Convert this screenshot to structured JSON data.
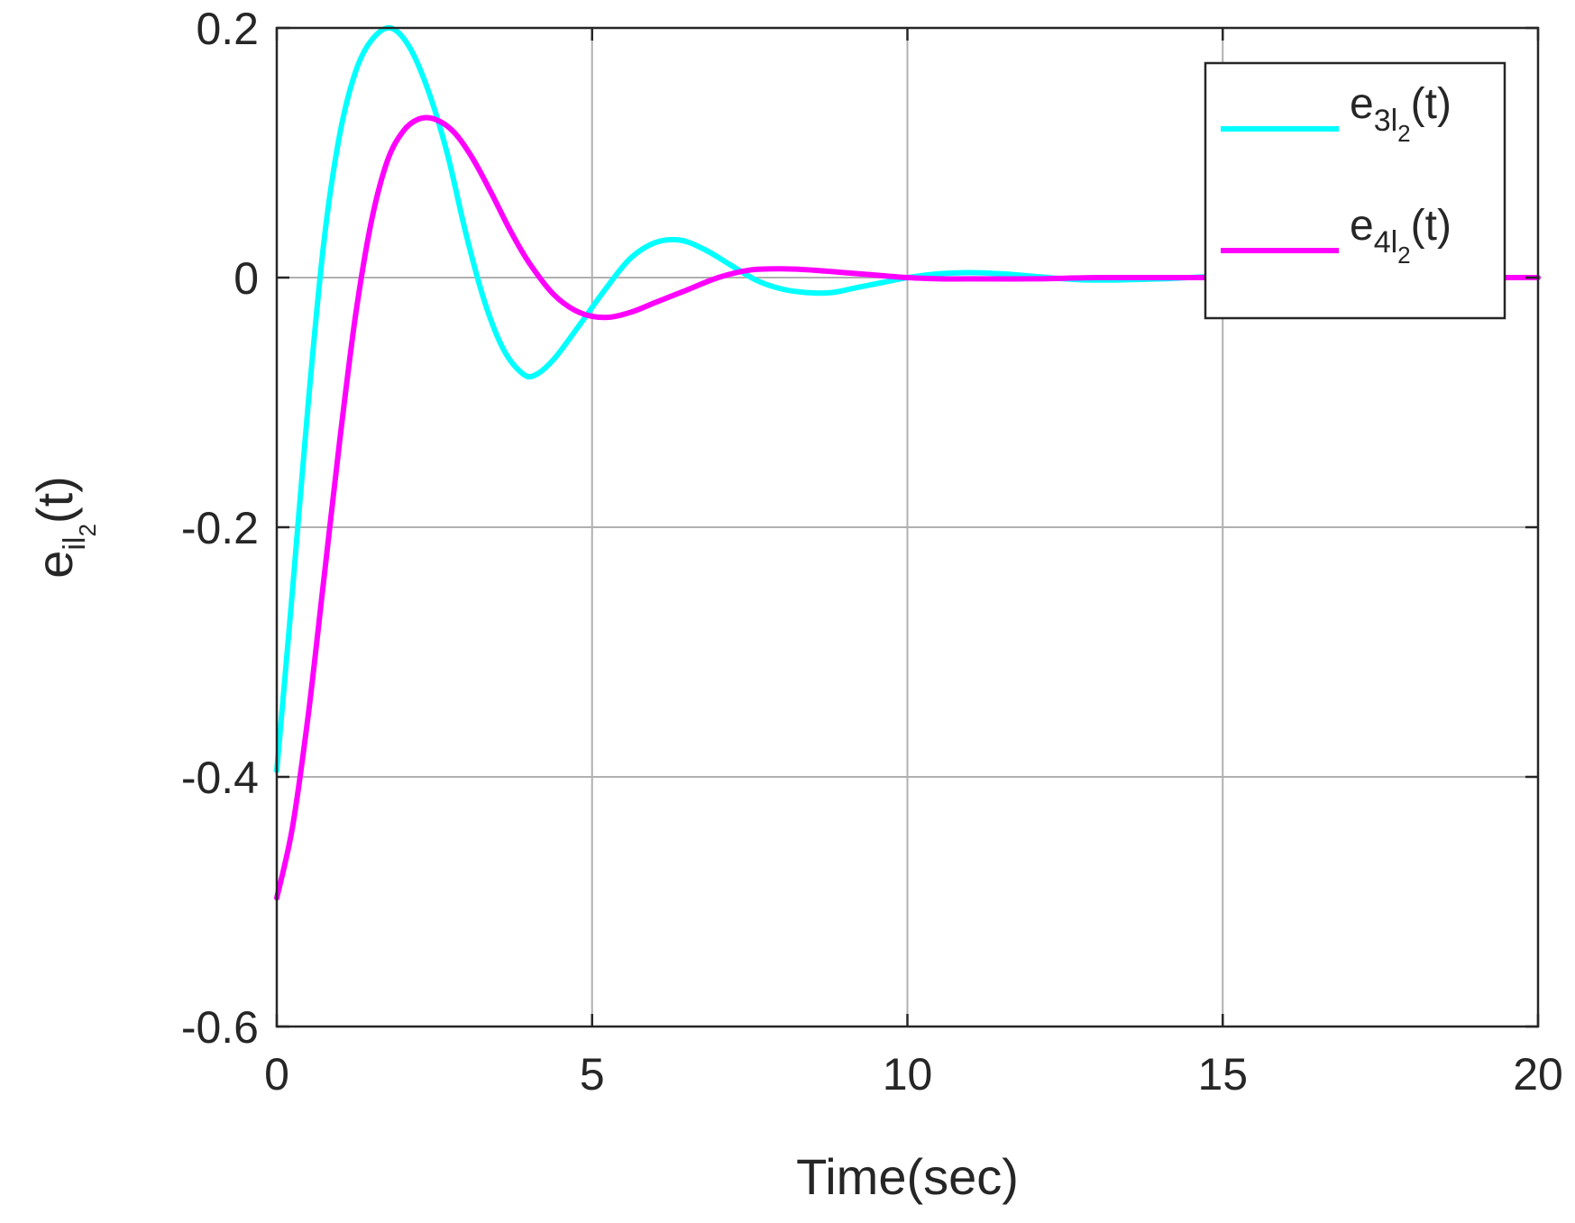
{
  "chart_data": {
    "type": "line",
    "xlabel": "Time(sec)",
    "ylabel": {
      "base": "e",
      "sub": "il",
      "subsub": "2",
      "suffix": "(t)"
    },
    "xlim": [
      0,
      20
    ],
    "ylim": [
      -0.6,
      0.2
    ],
    "xticks": [
      0,
      5,
      10,
      15,
      20
    ],
    "xtick_labels": [
      "0",
      "5",
      "10",
      "15",
      "20"
    ],
    "yticks": [
      -0.6,
      -0.4,
      -0.2,
      0,
      0.2
    ],
    "ytick_labels": [
      "-0.6",
      "-0.4",
      "-0.2",
      "0",
      "0.2"
    ],
    "grid": true,
    "legend_position": "top-right",
    "series": [
      {
        "name": "e3l2(t)",
        "legend": {
          "base": "e",
          "sub": "3l",
          "subsub": "2",
          "suffix": "(t)"
        },
        "color": "#00FFFF",
        "x": [
          0,
          0.25,
          0.5,
          0.75,
          1.0,
          1.25,
          1.5,
          1.8,
          2.1,
          2.4,
          2.7,
          3.0,
          3.3,
          3.6,
          3.9,
          4.1,
          4.4,
          4.8,
          5.2,
          5.6,
          6.0,
          6.4,
          6.8,
          7.2,
          7.6,
          8.0,
          8.4,
          8.8,
          9.2,
          9.6,
          10.0,
          10.5,
          11.0,
          11.5,
          12.0,
          12.5,
          13.0,
          14.0,
          15.0,
          16.0,
          17.0,
          18.0,
          19.0,
          20.0
        ],
        "y": [
          -0.395,
          -0.25,
          -0.1,
          0.03,
          0.115,
          0.165,
          0.19,
          0.2,
          0.185,
          0.15,
          0.1,
          0.035,
          -0.02,
          -0.058,
          -0.077,
          -0.078,
          -0.065,
          -0.038,
          -0.01,
          0.015,
          0.028,
          0.03,
          0.022,
          0.01,
          -0.002,
          -0.009,
          -0.012,
          -0.012,
          -0.008,
          -0.004,
          0.0,
          0.003,
          0.004,
          0.003,
          0.001,
          -0.001,
          -0.002,
          -0.001,
          0.001,
          0.0,
          0.0,
          0.0,
          0.0,
          0.0
        ]
      },
      {
        "name": "e4l2(t)",
        "legend": {
          "base": "e",
          "sub": "4l",
          "subsub": "2",
          "suffix": "(t)"
        },
        "color": "#FF00FF",
        "x": [
          0,
          0.25,
          0.5,
          0.75,
          1.0,
          1.25,
          1.5,
          1.75,
          2.0,
          2.25,
          2.5,
          2.8,
          3.1,
          3.4,
          3.7,
          4.0,
          4.4,
          4.8,
          5.2,
          5.6,
          6.0,
          6.5,
          7.0,
          7.5,
          8.0,
          8.5,
          9.0,
          9.5,
          10.0,
          10.5,
          11.0,
          12.0,
          13.0,
          14.0,
          15.0,
          16.0,
          17.0,
          18.0,
          19.0,
          20.0
        ],
        "y": [
          -0.497,
          -0.44,
          -0.35,
          -0.24,
          -0.13,
          -0.03,
          0.045,
          0.093,
          0.117,
          0.127,
          0.127,
          0.117,
          0.096,
          0.068,
          0.038,
          0.012,
          -0.014,
          -0.028,
          -0.032,
          -0.028,
          -0.02,
          -0.01,
          0.0,
          0.006,
          0.007,
          0.006,
          0.004,
          0.002,
          0.0,
          -0.001,
          -0.001,
          -0.001,
          0.0,
          0.0,
          0.0,
          0.0,
          0.0,
          0.0,
          0.0,
          0.0
        ]
      }
    ]
  }
}
